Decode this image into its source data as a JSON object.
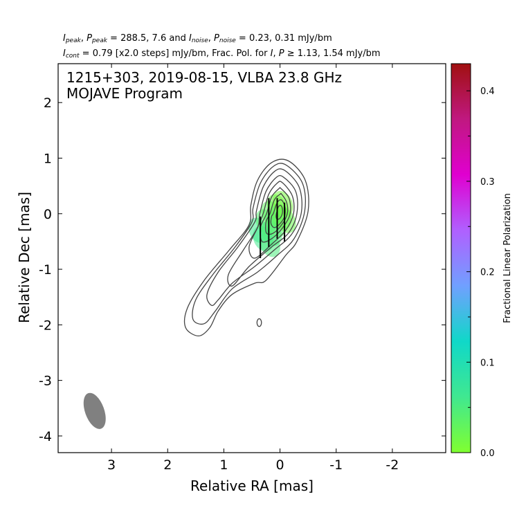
{
  "header": {
    "line1": {
      "sym_i": "I",
      "sub_peak": "peak",
      "sep1": ", ",
      "sym_p": "P",
      "sub_ppeak": "peak",
      "val1": " = 288.5, 7.6 and ",
      "sym_i2": "I",
      "sub_noise": "noise",
      "sep2": ", ",
      "sym_p2": "P",
      "sub_pnoise": "noise",
      "val2": " = 0.23, 0.31 mJy/bm"
    },
    "line2": {
      "sym_i": "I",
      "sub_cont": "cont",
      "text": " = 0.79 [x2.0 steps] mJy/bm, Frac. Pol. for ",
      "sym_i2": "I",
      "sep": ", ",
      "sym_p": "P",
      "tail": " ≥ 1.13, 1.54 mJy/bm"
    }
  },
  "chart_data": {
    "type": "contour",
    "title_line1": "1215+303, 2019-08-15, VLBA 23.8 GHz",
    "title_line2": "MOJAVE Program",
    "xlabel": "Relative RA [mas]",
    "ylabel": "Relative Dec [mas]",
    "xlim": [
      3.95,
      -2.95
    ],
    "ylim": [
      -4.3,
      2.7
    ],
    "xticks": [
      3,
      2,
      1,
      0,
      -1,
      -2
    ],
    "xtick_labels": [
      "3",
      "2",
      "1",
      "0",
      "-1",
      "-2"
    ],
    "yticks": [
      2,
      1,
      0,
      -1,
      -2,
      -3,
      -4
    ],
    "ytick_labels": [
      "2",
      "1",
      "0",
      "-1",
      "-2",
      "-3",
      "-4"
    ],
    "colorbar": {
      "label": "Fractional Linear Polarization",
      "range": [
        0.0,
        0.43
      ],
      "ticks": [
        0.0,
        0.1,
        0.2,
        0.3,
        0.4
      ],
      "tick_labels": [
        "0.0",
        "0.1",
        "0.2",
        "0.3",
        "0.4"
      ],
      "colors": [
        "#80ff30",
        "#40e890",
        "#10d8c8",
        "#70a0ff",
        "#b060ff",
        "#e000d0",
        "#c01880",
        "#a01010"
      ]
    },
    "contours": [
      [
        [
          0.52,
          0.15
        ],
        [
          0.4,
          0.6
        ],
        [
          0.15,
          0.92
        ],
        [
          -0.15,
          0.95
        ],
        [
          -0.45,
          0.6
        ],
        [
          -0.5,
          0.05
        ],
        [
          -0.3,
          -0.5
        ],
        [
          -0.1,
          -0.75
        ],
        [
          0.25,
          -1.2
        ],
        [
          0.45,
          -1.25
        ],
        [
          0.85,
          -1.45
        ],
        [
          1.1,
          -1.75
        ],
        [
          1.25,
          -2.05
        ],
        [
          1.45,
          -2.2
        ],
        [
          1.68,
          -2.05
        ],
        [
          1.65,
          -1.7
        ],
        [
          1.35,
          -1.2
        ],
        [
          0.9,
          -0.65
        ],
        [
          0.55,
          -0.2
        ]
      ],
      [
        [
          0.48,
          0.1
        ],
        [
          0.35,
          0.55
        ],
        [
          0.12,
          0.85
        ],
        [
          -0.1,
          0.88
        ],
        [
          -0.4,
          0.55
        ],
        [
          -0.44,
          0.05
        ],
        [
          -0.25,
          -0.45
        ],
        [
          0.05,
          -0.75
        ],
        [
          0.4,
          -1.05
        ],
        [
          0.85,
          -1.35
        ],
        [
          1.15,
          -1.75
        ],
        [
          1.35,
          -1.98
        ],
        [
          1.55,
          -1.9
        ],
        [
          1.5,
          -1.55
        ],
        [
          1.2,
          -1.1
        ],
        [
          0.8,
          -0.6
        ],
        [
          0.5,
          -0.15
        ]
      ],
      [
        [
          0.42,
          0.05
        ],
        [
          0.3,
          0.48
        ],
        [
          0.1,
          0.76
        ],
        [
          -0.08,
          0.78
        ],
        [
          -0.34,
          0.48
        ],
        [
          -0.38,
          0.02
        ],
        [
          -0.2,
          -0.38
        ],
        [
          0.1,
          -0.65
        ],
        [
          0.45,
          -0.95
        ],
        [
          0.85,
          -1.25
        ],
        [
          1.1,
          -1.55
        ],
        [
          1.22,
          -1.65
        ],
        [
          1.3,
          -1.45
        ],
        [
          1.1,
          -1.05
        ],
        [
          0.75,
          -0.6
        ],
        [
          0.45,
          -0.15
        ]
      ],
      [
        [
          0.36,
          0.0
        ],
        [
          0.25,
          0.4
        ],
        [
          0.07,
          0.65
        ],
        [
          -0.06,
          0.66
        ],
        [
          -0.28,
          0.4
        ],
        [
          -0.3,
          0.0
        ],
        [
          -0.15,
          -0.35
        ],
        [
          0.15,
          -0.6
        ],
        [
          0.55,
          -0.95
        ],
        [
          0.85,
          -1.3
        ],
        [
          0.92,
          -1.1
        ],
        [
          0.65,
          -0.65
        ],
        [
          0.4,
          -0.25
        ]
      ],
      [
        [
          0.3,
          0.0
        ],
        [
          0.2,
          0.35
        ],
        [
          0.05,
          0.55
        ],
        [
          -0.04,
          0.56
        ],
        [
          -0.22,
          0.32
        ],
        [
          -0.24,
          0.0
        ],
        [
          -0.1,
          -0.3
        ],
        [
          0.15,
          -0.55
        ],
        [
          0.45,
          -0.8
        ],
        [
          0.55,
          -0.6
        ],
        [
          0.4,
          -0.25
        ]
      ],
      [
        [
          0.24,
          0.0
        ],
        [
          0.15,
          0.3
        ],
        [
          0.02,
          0.45
        ],
        [
          -0.02,
          0.45
        ],
        [
          -0.16,
          0.28
        ],
        [
          -0.18,
          0.0
        ],
        [
          -0.05,
          -0.25
        ],
        [
          0.15,
          -0.45
        ],
        [
          0.32,
          -0.5
        ],
        [
          0.35,
          -0.25
        ]
      ],
      [
        [
          0.18,
          0.0
        ],
        [
          0.1,
          0.25
        ],
        [
          0.0,
          0.35
        ],
        [
          -0.03,
          0.35
        ],
        [
          -0.12,
          0.2
        ],
        [
          -0.13,
          0.0
        ],
        [
          -0.03,
          -0.2
        ],
        [
          0.12,
          -0.35
        ],
        [
          0.24,
          -0.35
        ],
        [
          0.25,
          -0.15
        ]
      ],
      [
        [
          0.12,
          0.0
        ],
        [
          0.06,
          0.18
        ],
        [
          0.0,
          0.25
        ],
        [
          -0.05,
          0.22
        ],
        [
          -0.09,
          0.1
        ],
        [
          -0.08,
          -0.05
        ],
        [
          0.0,
          -0.18
        ],
        [
          0.1,
          -0.25
        ],
        [
          0.16,
          -0.18
        ],
        [
          0.15,
          -0.05
        ]
      ],
      [
        [
          0.06,
          0.02
        ],
        [
          0.03,
          0.12
        ],
        [
          -0.01,
          0.15
        ],
        [
          -0.04,
          0.1
        ],
        [
          -0.04,
          0.0
        ],
        [
          0.0,
          -0.08
        ],
        [
          0.05,
          -0.1
        ],
        [
          0.07,
          -0.05
        ]
      ]
    ],
    "islands": [
      {
        "ra": 0.37,
        "dec": -1.96,
        "rx": 0.04,
        "ry": 0.07
      }
    ],
    "polarization": [
      {
        "ra": 0.38,
        "dec": -0.3,
        "frac": 0.06
      },
      {
        "ra": 0.3,
        "dec": -0.45,
        "frac": 0.06
      },
      {
        "ra": 0.25,
        "dec": -0.15,
        "frac": 0.04
      },
      {
        "ra": 0.18,
        "dec": -0.55,
        "frac": 0.05
      },
      {
        "ra": 0.15,
        "dec": -0.35,
        "frac": 0.05
      },
      {
        "ra": 0.15,
        "dec": 0.0,
        "frac": 0.03
      },
      {
        "ra": 0.08,
        "dec": -0.2,
        "frac": 0.04
      },
      {
        "ra": 0.05,
        "dec": 0.12,
        "frac": 0.02
      },
      {
        "ra": -0.02,
        "dec": -0.05,
        "frac": 0.03
      },
      {
        "ra": -0.05,
        "dec": 0.18,
        "frac": 0.01
      },
      {
        "ra": -0.1,
        "dec": -0.12,
        "frac": 0.02
      }
    ],
    "evpa_ticks": [
      {
        "ra": 0.35,
        "dec_bottom": -0.8,
        "dec_top": -0.05
      },
      {
        "ra": 0.2,
        "dec_bottom": -0.6,
        "dec_top": 0.28
      },
      {
        "ra": 0.05,
        "dec_bottom": -0.45,
        "dec_top": 0.28
      },
      {
        "ra": -0.08,
        "dec_bottom": -0.5,
        "dec_top": 0.2
      }
    ],
    "beam": {
      "ra": 3.3,
      "dec": -3.55,
      "major": 0.68,
      "minor": 0.34,
      "pa_deg": -20
    }
  }
}
